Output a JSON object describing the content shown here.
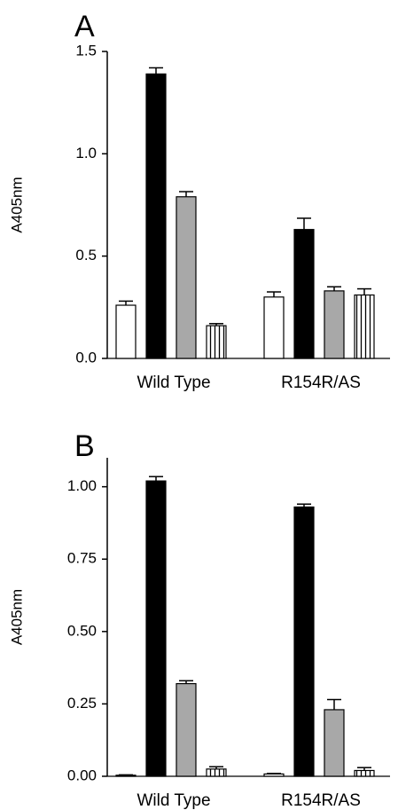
{
  "chart_data": [
    {
      "panel": "A",
      "type": "bar",
      "categories": [
        "Wild Type",
        "R154R/AS"
      ],
      "ylabel": "A405nm",
      "ylim": [
        0,
        1.5
      ],
      "yticks": [
        "0.0",
        "0.5",
        "1.0",
        "1.5"
      ],
      "grid": false,
      "series": [
        {
          "fill": "white",
          "values": [
            0.26,
            0.3
          ],
          "errors": [
            0.02,
            0.025
          ]
        },
        {
          "fill": "black",
          "values": [
            1.39,
            0.63
          ],
          "errors": [
            0.03,
            0.055
          ]
        },
        {
          "fill": "gray",
          "values": [
            0.79,
            0.33
          ],
          "errors": [
            0.025,
            0.02
          ]
        },
        {
          "fill": "vertical-stripes",
          "values": [
            0.16,
            0.31
          ],
          "errors": [
            0.01,
            0.03
          ]
        }
      ]
    },
    {
      "panel": "B",
      "type": "bar",
      "categories": [
        "Wild Type",
        "R154R/AS"
      ],
      "ylabel": "A405nm",
      "ylim": [
        0,
        1.1
      ],
      "yticks": [
        "0.00",
        "0.25",
        "0.50",
        "0.75",
        "1.00"
      ],
      "grid": false,
      "series": [
        {
          "fill": "white",
          "values": [
            0.003,
            0.008
          ],
          "errors": [
            0.002,
            0.002
          ]
        },
        {
          "fill": "black",
          "values": [
            1.02,
            0.93
          ],
          "errors": [
            0.015,
            0.01
          ]
        },
        {
          "fill": "gray",
          "values": [
            0.32,
            0.23
          ],
          "errors": [
            0.01,
            0.035
          ]
        },
        {
          "fill": "vertical-stripes",
          "values": [
            0.025,
            0.02
          ],
          "errors": [
            0.008,
            0.01
          ]
        }
      ]
    }
  ],
  "colors": {
    "black": "#000000",
    "gray": "#a8a8a8",
    "white": "#ffffff"
  }
}
